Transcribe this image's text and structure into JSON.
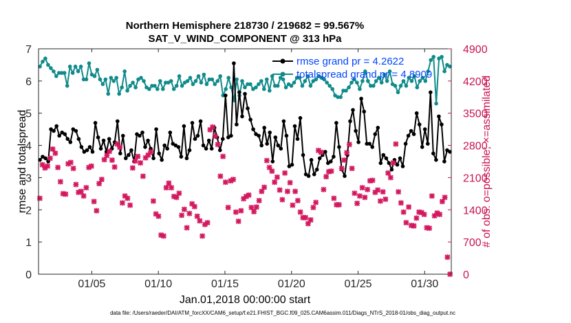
{
  "chart_data": {
    "type": "line",
    "title": "Northern Hemisphere 218730 / 219682 = 99.567%",
    "subtitle": "SAT_V_WIND_COMPONENT @ 313 hPa",
    "xlabel": "Jan.01,2018 00:00:00 start",
    "ylabel": "rmse and totalspread",
    "ylabel_right": "# of obs: o=possible; ×=assimilated",
    "footnote": "data file: /Users/raeder/DAI/ATM_forcXX/CAM6_setup/f.e21.FHIST_BGC.f09_025.CAM6assim.011/Diags_NTrS_2018-01/obs_diag_output.nc",
    "xlim": [
      1,
      32
    ],
    "ylim": [
      0,
      7
    ],
    "ylim_right": [
      0,
      4900
    ],
    "x_ticks": [
      5,
      10,
      15,
      20,
      25,
      30
    ],
    "x_tick_labels": [
      "01/05",
      "01/10",
      "01/15",
      "01/20",
      "01/25",
      "01/30"
    ],
    "y_ticks": [
      0,
      1,
      2,
      3,
      4,
      5,
      6,
      7
    ],
    "y_tick_labels": [
      "0",
      "1",
      "2",
      "3",
      "4",
      "5",
      "6",
      "7"
    ],
    "y2_ticks": [
      0,
      700,
      1400,
      2100,
      2800,
      3500,
      4200,
      4900
    ],
    "y2_tick_labels": [
      "0",
      "700",
      "1400",
      "2100",
      "2800",
      "3500",
      "4200",
      "4900"
    ],
    "grid": false,
    "legend_position": "top-right",
    "colors": {
      "rmse": "#000000",
      "spread": "#108a8a",
      "obs": "#d3185f",
      "right_axis": "#c9134f",
      "legend_text": "#0046ff"
    },
    "series": [
      {
        "name": "rmse grand pr = 4.2622",
        "axis": "left",
        "values": [
          3.55,
          3.65,
          3.6,
          3.5,
          4.5,
          4.45,
          4.6,
          4.3,
          4.4,
          4.35,
          4.2,
          4.1,
          4.5,
          4.45,
          4.2,
          3.95,
          3.8,
          3.85,
          3.95,
          3.8,
          4.7,
          4.25,
          3.9,
          4.15,
          3.8,
          4.2,
          3.9,
          4.1,
          4.75,
          3.75,
          4.3,
          3.6,
          3.7,
          3.85,
          3.5,
          4.35,
          4.3,
          4.4,
          3.95,
          4.15,
          3.9,
          3.6,
          4.5,
          3.75,
          3.55,
          4.0,
          3.9,
          4.4,
          4.05,
          4.0,
          3.95,
          3.65,
          4.6,
          3.6,
          3.85,
          4.7,
          4.2,
          4.3,
          4.75,
          4.0,
          3.9,
          4.15,
          3.9,
          4.55,
          4.25,
          3.85,
          4.2,
          5.55,
          4.25,
          4.3,
          6.55,
          4.65,
          5.65,
          4.9,
          5.6,
          5.15,
          4.8,
          4.5,
          4.35,
          4.3,
          4.0,
          4.55,
          4.05,
          4.4,
          3.5,
          4.25,
          4.0,
          3.9,
          4.75,
          4.3,
          3.35,
          3.4,
          4.6,
          4.2,
          4.85,
          3.7,
          3.1,
          3.05,
          3.55,
          3.1,
          3.25,
          3.6,
          3.7,
          3.8,
          3.45,
          3.5,
          3.65,
          4.7,
          3.95,
          3.25,
          3.05,
          3.7,
          4.75,
          5.1,
          4.45,
          4.1,
          5.45,
          5.05,
          4.05,
          4.05,
          3.95,
          4.35,
          4.55,
          3.45,
          3.7,
          3.6,
          3.45,
          3.25,
          3.55,
          3.4,
          3.6,
          3.35,
          4.05,
          4.3,
          4.45,
          4.35,
          5.0,
          4.65,
          3.95,
          4.5,
          4.05,
          5.65,
          3.75,
          3.55,
          4.9,
          4.65,
          3.5,
          3.85,
          3.8
        ],
        "color": "#000000"
      },
      {
        "name": "totalspread grand pr = 4.8909",
        "axis": "left",
        "values": [
          6.45,
          6.6,
          6.7,
          6.5,
          6.4,
          6.3,
          6.15,
          6.25,
          6.25,
          6.25,
          5.85,
          6.45,
          6.25,
          6.45,
          6.3,
          6.45,
          6.05,
          6.05,
          6.55,
          6.2,
          6.15,
          6.35,
          6.05,
          5.9,
          6.05,
          5.6,
          6.1,
          6.0,
          6.1,
          5.6,
          5.8,
          6.3,
          5.7,
          5.85,
          5.95,
          5.8,
          6.05,
          6.1,
          6.0,
          5.8,
          5.75,
          5.85,
          5.85,
          5.75,
          6.0,
          5.75,
          5.95,
          5.95,
          6.0,
          5.75,
          5.85,
          6.15,
          5.85,
          5.95,
          6.0,
          6.1,
          5.9,
          6.0,
          6.15,
          5.95,
          6.2,
          5.9,
          6.05,
          6.05,
          5.9,
          6.0,
          6.15,
          5.55,
          5.75,
          6.1,
          5.8,
          5.4,
          6.05,
          5.55,
          6.0,
          5.8,
          5.9,
          5.9,
          5.75,
          5.8,
          5.9,
          6.0,
          5.75,
          6.05,
          5.7,
          6.15,
          5.85,
          5.85,
          6.1,
          6.05,
          5.8,
          5.9,
          5.85,
          5.95,
          6.1,
          6.1,
          5.85,
          6.0,
          6.15,
          5.85,
          6.0,
          6.05,
          6.15,
          6.1,
          6.05,
          5.95,
          5.85,
          5.75,
          5.55,
          5.5,
          5.5,
          5.7,
          5.7,
          5.8,
          5.95,
          6.05,
          5.95,
          5.75,
          6.0,
          6.3,
          6.0,
          5.85,
          5.85,
          6.0,
          6.1,
          5.95,
          6.2,
          6.0,
          6.3,
          5.9,
          5.85,
          5.65,
          5.85,
          6.0,
          5.85,
          6.1,
          6.0,
          6.15,
          5.8,
          6.0,
          6.1,
          6.0,
          6.3,
          6.65,
          6.75,
          5.3,
          6.7,
          6.75,
          6.3,
          6.5,
          6.45
        ],
        "color": "#108a8a"
      },
      {
        "name": "obs assimilated",
        "axis": "right",
        "marker": "x",
        "values": [
          1650,
          2380,
          2310,
          2350,
          2520,
          2720,
          2630,
          2320,
          2010,
          1750,
          1740,
          2400,
          2430,
          2300,
          1950,
          1780,
          1800,
          1700,
          1880,
          2320,
          2350,
          1580,
          1380,
          1970,
          2060,
          2490,
          2580,
          2670,
          2480,
          2330,
          2830,
          2760,
          1550,
          1700,
          1650,
          1500,
          2310,
          2460,
          2560,
          2420,
          2130,
          2530,
          2590,
          2660,
          1590,
          1310,
          1260,
          850,
          830,
          1880,
          1980,
          1880,
          1690,
          1670,
          1760,
          1280,
          1410,
          1010,
          1320,
          1530,
          1470,
          1260,
          1160,
          830,
          1080,
          1120,
          3140,
          3200,
          3000,
          2820,
          2130,
          2560,
          2000,
          1450,
          2030,
          2060,
          1350,
          1150,
          1380,
          1640,
          1690,
          1720,
          1450,
          1360,
          1460,
          1600,
          1800,
          1890,
          2470,
          2320,
          2240,
          2000,
          2110,
          1830,
          1620,
          2200,
          1800,
          1990,
          1500,
          1800,
          1600,
          1350,
          1230,
          1230,
          1100,
          1180,
          1450,
          1560,
          2690,
          2650,
          1840,
          2120,
          2230,
          2240,
          1650,
          1510,
          1510,
          2300,
          2480,
          2640,
          2820,
          2300,
          1760,
          1540,
          1700,
          1880,
          1670,
          1840,
          2030,
          2040,
          1780,
          1830,
          1590,
          1790,
          1630,
          2200,
          2100,
          2420,
          2830,
          1790,
          1550,
          1350,
          1120,
          1460,
          1060,
          1050,
          1220,
          1350,
          1340,
          1300,
          1010,
          1000,
          1700,
          1270,
          1330,
          1300,
          1580,
          1670,
          370,
          0
        ],
        "color": "#d3185f"
      }
    ]
  }
}
